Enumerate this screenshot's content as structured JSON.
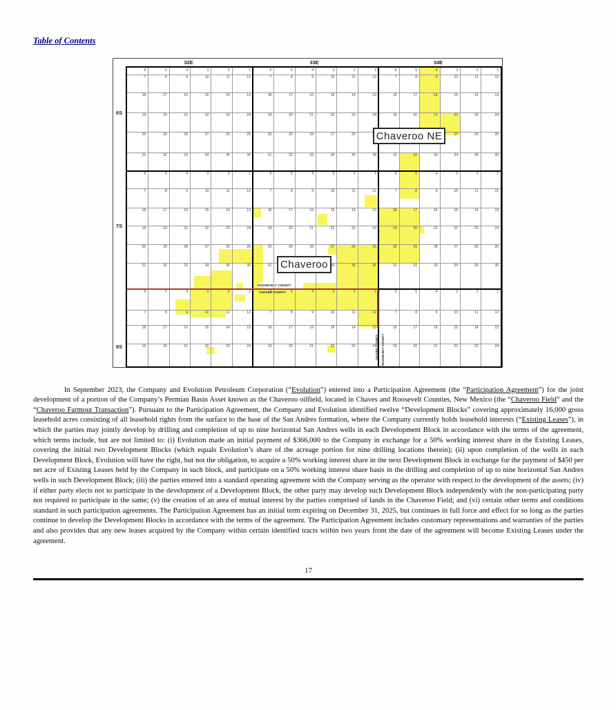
{
  "page": {
    "toc_link": "Table of Contents",
    "page_number": "17"
  },
  "map": {
    "range_labels": [
      "32E",
      "33E",
      "34E"
    ],
    "township_labels": [
      "6S",
      "7S",
      "8S"
    ],
    "field_labels": {
      "chaveroo_ne": "Chaveroo NE",
      "chaveroo": "Chaveroo"
    },
    "county_labels": {
      "roosevelt_h": "ROOSEVELT COUNTY",
      "chaves_h": "CHAVES COUNTY",
      "chaves_v": "CHAVES COUNTY",
      "roosevelt_v": "ROOSEVELT COUNTY"
    },
    "colors": {
      "highlight": "#F8F55A",
      "county_line": "#B0392B"
    },
    "section_rows": [
      [
        6,
        5,
        4,
        3,
        2,
        1
      ],
      [
        7,
        8,
        9,
        10,
        11,
        12
      ],
      [
        18,
        17,
        16,
        15,
        14,
        13
      ],
      [
        19,
        20,
        21,
        22,
        23,
        24
      ],
      [
        30,
        29,
        28,
        27,
        26,
        25
      ],
      [
        31,
        32,
        33,
        34,
        35,
        36
      ],
      [
        6,
        5,
        4,
        3,
        2,
        1
      ],
      [
        7,
        8,
        9,
        10,
        11,
        12
      ],
      [
        18,
        17,
        16,
        15,
        14,
        13
      ],
      [
        19,
        20,
        21,
        22,
        23,
        24
      ],
      [
        30,
        29,
        28,
        27,
        26,
        25
      ],
      [
        31,
        32,
        33,
        34,
        35,
        36
      ],
      [
        6,
        5,
        4,
        3,
        2,
        1
      ],
      [
        7,
        8,
        9,
        10,
        11,
        12
      ],
      [
        18,
        17,
        16,
        15,
        14,
        13
      ],
      [
        19,
        20,
        21,
        22,
        23,
        24
      ]
    ],
    "highlights": [
      {
        "c": 14,
        "r": 0,
        "w": 1,
        "h": 4
      },
      {
        "c": 15,
        "r": 3,
        "w": 1,
        "h": 1.15
      },
      {
        "c": 13,
        "r": 5,
        "w": 1,
        "h": 2
      },
      {
        "c": 13,
        "r": 7,
        "w": 1,
        "h": 0.55
      },
      {
        "c": 12,
        "r": 8,
        "w": 2,
        "h": 1
      },
      {
        "c": 12,
        "r": 9,
        "w": 2,
        "h": 1
      },
      {
        "c": 14,
        "r": 9,
        "w": 0.25,
        "h": 0.45
      },
      {
        "c": 12,
        "r": 10,
        "w": 2,
        "h": 1
      },
      {
        "c": 11.35,
        "r": 7.35,
        "w": 0.65,
        "h": 0.6
      },
      {
        "c": 6,
        "r": 8,
        "w": 0.4,
        "h": 0.55
      },
      {
        "c": 9.1,
        "r": 8.35,
        "w": 0.45,
        "h": 0.6
      },
      {
        "c": 6,
        "r": 10,
        "w": 0.5,
        "h": 2
      },
      {
        "c": 9.6,
        "r": 10,
        "w": 0.4,
        "h": 0.55
      },
      {
        "c": 10,
        "r": 10,
        "w": 2,
        "h": 1
      },
      {
        "c": 10,
        "r": 11,
        "w": 2,
        "h": 1
      },
      {
        "c": 8.4,
        "r": 11.75,
        "w": 1.6,
        "h": 0.25
      },
      {
        "c": 6,
        "r": 12,
        "w": 6,
        "h": 1
      },
      {
        "c": 11,
        "r": 13,
        "w": 1,
        "h": 1.1
      },
      {
        "c": 9.55,
        "r": 15.1,
        "w": 0.4,
        "h": 0.3
      },
      {
        "c": 4.4,
        "r": 10.25,
        "w": 1.6,
        "h": 0.75
      },
      {
        "c": 3.2,
        "r": 11.5,
        "w": 0.8,
        "h": 0.5
      },
      {
        "c": 4,
        "r": 11.3,
        "w": 1,
        "h": 0.7
      },
      {
        "c": 5.2,
        "r": 11.75,
        "w": 0.35,
        "h": 0.25
      },
      {
        "c": 3,
        "r": 12,
        "w": 2,
        "h": 1
      },
      {
        "c": 2.3,
        "r": 12.5,
        "w": 0.7,
        "h": 0.8
      },
      {
        "c": 5.15,
        "r": 12.25,
        "w": 0.5,
        "h": 0.35
      },
      {
        "c": 3,
        "r": 13,
        "w": 1.7,
        "h": 0.5
      },
      {
        "c": 3.8,
        "r": 15.15,
        "w": 0.4,
        "h": 0.3
      }
    ]
  },
  "body": {
    "segments": [
      {
        "t": "In September 2023, the Company and Evolution Petroleum Corporation (“"
      },
      {
        "t": "Evolution",
        "u": true
      },
      {
        "t": "”) entered into a Participation Agreement (the “"
      },
      {
        "t": "Participation Agreement",
        "u": true
      },
      {
        "t": "”) for the joint development of a portion of the Company’s Permian Basin Asset known as the Chaveroo oilfield, located in Chaves and Roosevelt Counties, New Mexico (the “"
      },
      {
        "t": "Chaveroo Field",
        "u": true
      },
      {
        "t": "” and the “"
      },
      {
        "t": "Chaveroo Farmout Transaction",
        "u": true
      },
      {
        "t": "”). Pursuant to the Participation Agreement, the Company and Evolution identified twelve “Development Blocks” covering approximately 16,000 gross leasehold acres consisting of all leasehold rights from the surface to the base of the San Andres formation, where the Company currently holds leasehold interests (“"
      },
      {
        "t": "Existing Leases",
        "u": true
      },
      {
        "t": "”), in which the parties may jointly develop by drilling and completion of up to nine horizontal San Andres wells in each Development Block in accordance with the terms of the agreement, which terms include, but are not limited to: (i) Evolution made an initial payment of $366,000 to the Company in exchange for a 50% working interest share in the Existing Leases, covering the initial two Development Blocks (which equals Evolution’s share of the acreage portion for nine drilling locations therein); (ii) upon completion of the wells in each Development Block, Evolution will have the right, but not the obligation, to acquire a 50% working interest share in the next Development Block in exchange for the payment of $450 per net acre of Existing Leases held by the Company in such block, and participate on a 50% working interest share basis in the drilling and completion of up to nine horizontal San Andres wells in such Development Block; (iii) the parties entered into a standard operating agreement with the Company serving as the operator with respect to the development of the assets; (iv) if either party elects not to participate in the development of a Development Block, the other party may develop such Development Block independently with the non-participating party not required to participate in the same; (v) the creation of an area of mutual interest by the parties comprised of lands in the Chaveroo Field; and (vi) certain other terms and conditions standard in such participation agreements. The Participation Agreement has an initial term expiring on December 31, 2025, but continues in full force and effect for so long as the parties continue to develop the Development Blocks in accordance with the terms of the agreement. The Participation Agreement includes customary representations and warranties of the parties and also provides that any new leases acquired by the Company within certain identified tracts within two years from the date of the agreement will become Existing Leases under the agreement."
      }
    ]
  }
}
